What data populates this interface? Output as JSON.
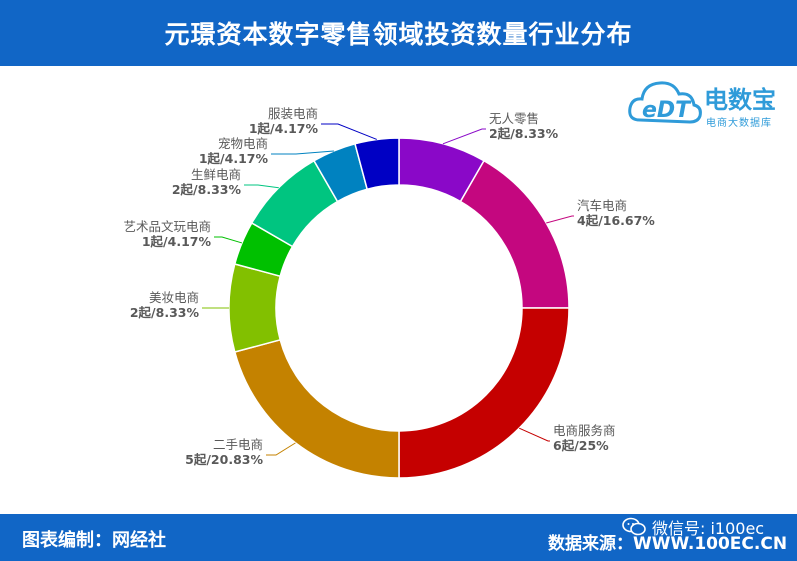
{
  "header": {
    "title": "元璟资本数字零售领域投资数量行业分布"
  },
  "footer": {
    "editor": "图表编制：网经社",
    "source": "数据来源：WWW.100EC.CN",
    "watermark": "微信号: i100ec"
  },
  "logo": {
    "name": "电数宝",
    "tagline": "电商大数据库",
    "mark": "eDT",
    "color": "#2f9bd9"
  },
  "colors": {
    "header_bg": "#1166c6",
    "footer_bg": "#1166c6",
    "label_text": "#595959"
  },
  "chart_data": {
    "type": "pie",
    "donut": true,
    "title": "",
    "unit": "起",
    "slices": [
      {
        "name": "无人零售",
        "count": 2,
        "percent": 8.33,
        "label": "2起/8.33%",
        "color": "#8a08c8"
      },
      {
        "name": "汽车电商",
        "count": 4,
        "percent": 16.67,
        "label": "4起/16.67%",
        "color": "#c4077f"
      },
      {
        "name": "电商服务商",
        "count": 6,
        "percent": 25,
        "label": "6起/25%",
        "color": "#c50000"
      },
      {
        "name": "二手电商",
        "count": 5,
        "percent": 20.83,
        "label": "5起/20.83%",
        "color": "#c48200"
      },
      {
        "name": "美妆电商",
        "count": 2,
        "percent": 8.33,
        "label": "2起/8.33%",
        "color": "#82c000"
      },
      {
        "name": "艺术品文玩电商",
        "count": 1,
        "percent": 4.17,
        "label": "1起/4.17%",
        "color": "#00c000"
      },
      {
        "name": "生鲜电商",
        "count": 2,
        "percent": 8.33,
        "label": "2起/8.33%",
        "color": "#00c580"
      },
      {
        "name": "宠物电商",
        "count": 1,
        "percent": 4.17,
        "label": "1起/4.17%",
        "color": "#0082c0"
      },
      {
        "name": "服装电商",
        "count": 1,
        "percent": 4.17,
        "label": "1起/4.17%",
        "color": "#0000c4"
      }
    ]
  }
}
